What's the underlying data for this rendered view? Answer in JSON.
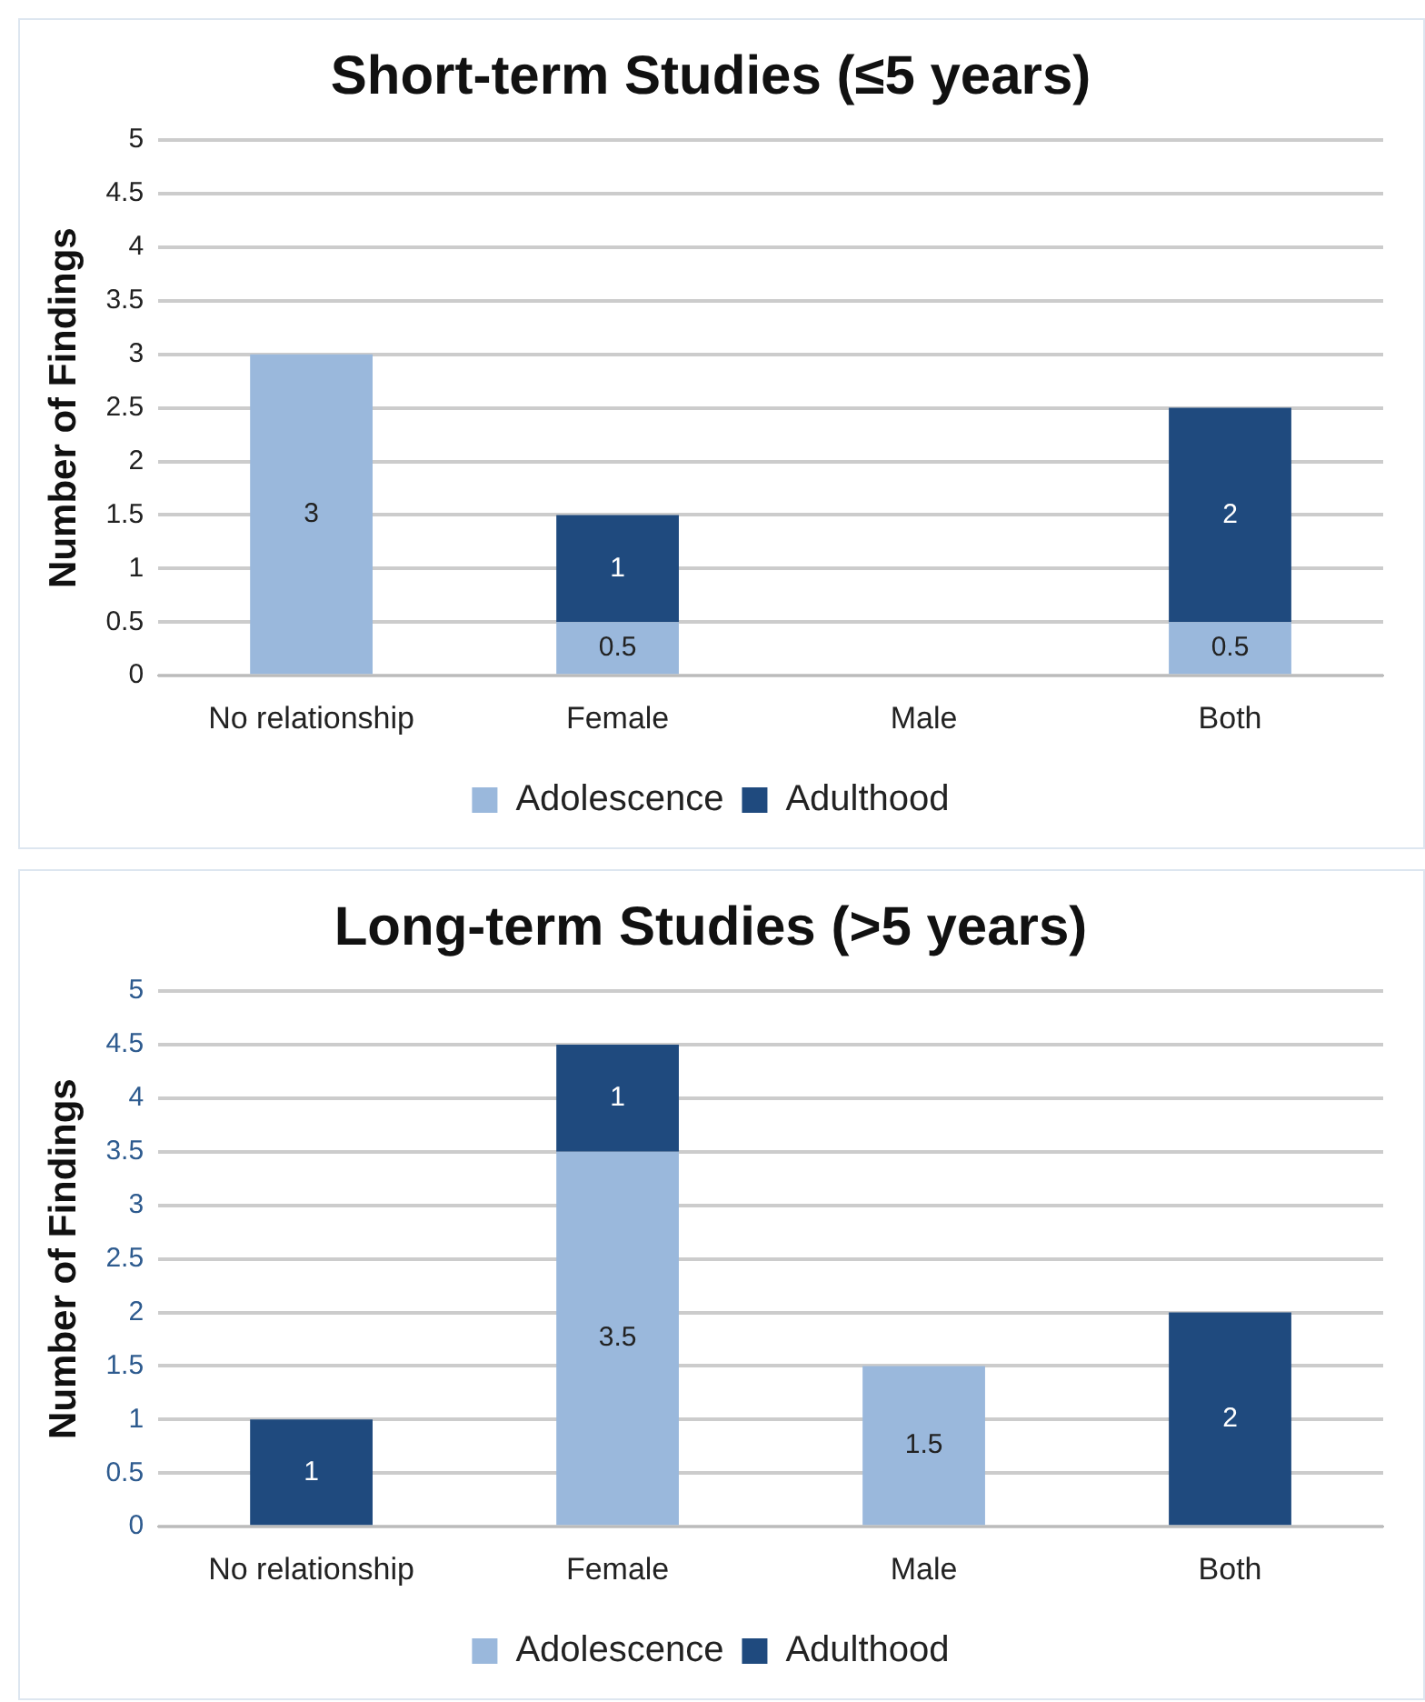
{
  "chart_data": [
    {
      "type": "bar",
      "title": "Short-term Studies (≤5 years)",
      "ylabel": "Number of Findings",
      "categories": [
        "No relationship",
        "Female",
        "Male",
        "Both"
      ],
      "stacked": true,
      "series": [
        {
          "name": "Adolescence",
          "color": "#9ab8dc",
          "values": [
            3,
            0.5,
            null,
            0.5
          ]
        },
        {
          "name": "Adulthood",
          "color": "#1f4a7e",
          "values": [
            null,
            1,
            null,
            2
          ]
        }
      ],
      "ylim": [
        0,
        5
      ],
      "yticks": [
        0,
        0.5,
        1,
        1.5,
        2,
        2.5,
        3,
        3.5,
        4,
        4.5,
        5
      ],
      "grid": "y",
      "legend": "bottom",
      "data_labels": true
    },
    {
      "type": "bar",
      "title": "Long-term Studies (>5 years)",
      "ylabel": "Number of Findings",
      "categories": [
        "No relationship",
        "Female",
        "Male",
        "Both"
      ],
      "stacked": true,
      "series": [
        {
          "name": "Adolescence",
          "color": "#9ab8dc",
          "values": [
            null,
            3.5,
            1.5,
            null
          ]
        },
        {
          "name": "Adulthood",
          "color": "#1f4a7e",
          "values": [
            1,
            1,
            null,
            2
          ]
        }
      ],
      "ylim": [
        0,
        5
      ],
      "yticks": [
        0,
        0.5,
        1,
        1.5,
        2,
        2.5,
        3,
        3.5,
        4,
        4.5,
        5
      ],
      "grid": "y",
      "legend": "bottom",
      "data_labels": true
    }
  ]
}
